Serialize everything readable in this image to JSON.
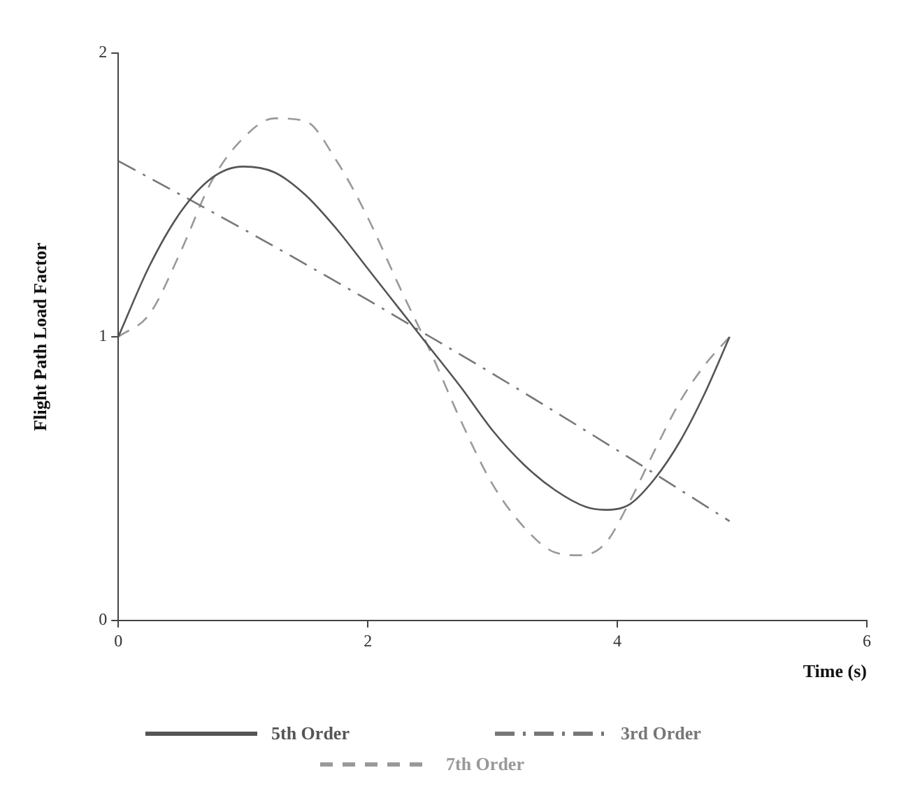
{
  "chart_data": {
    "type": "line",
    "xlabel": "Time (s)",
    "ylabel": "Flight Path Load Factor",
    "xlim": [
      0,
      6
    ],
    "xticks": [
      0,
      2,
      4,
      6
    ],
    "ylim": [
      0,
      2
    ],
    "yticks": [
      0,
      1,
      2
    ],
    "grid": false,
    "legend": "bottom",
    "marker": "none",
    "series": [
      {
        "name": "5th Order",
        "color": "#555555",
        "line_style": "solid",
        "x": [
          0,
          0.25,
          0.5,
          0.75,
          1,
          1.25,
          1.5,
          1.75,
          2,
          2.25,
          2.5,
          2.75,
          3,
          3.25,
          3.5,
          3.75,
          3.9,
          4.1,
          4.3,
          4.5,
          4.7,
          4.9
        ],
        "values": [
          1,
          1.25,
          1.44,
          1.56,
          1.6,
          1.58,
          1.5,
          1.38,
          1.24,
          1.1,
          0.96,
          0.82,
          0.67,
          0.55,
          0.46,
          0.4,
          0.39,
          0.41,
          0.5,
          0.63,
          0.8,
          1
        ]
      },
      {
        "name": "3rd Order",
        "color": "#777777",
        "line_style": "dashdot",
        "x": [
          0,
          1,
          2,
          2.5,
          3,
          4,
          4.9
        ],
        "values": [
          1.62,
          1.38,
          1.13,
          1,
          0.87,
          0.6,
          0.35
        ]
      },
      {
        "name": "7th Order",
        "color": "#999999",
        "line_style": "dashed",
        "x": [
          0,
          0.25,
          0.5,
          0.75,
          1,
          1.25,
          1.5,
          1.75,
          2,
          2.25,
          2.5,
          2.75,
          3,
          3.25,
          3.5,
          3.7,
          3.9,
          4.1,
          4.3,
          4.5,
          4.7,
          4.9
        ],
        "values": [
          1,
          1.08,
          1.3,
          1.55,
          1.7,
          1.77,
          1.76,
          1.62,
          1.42,
          1.18,
          0.95,
          0.7,
          0.48,
          0.33,
          0.24,
          0.23,
          0.27,
          0.42,
          0.6,
          0.77,
          0.9,
          1
        ]
      }
    ]
  }
}
